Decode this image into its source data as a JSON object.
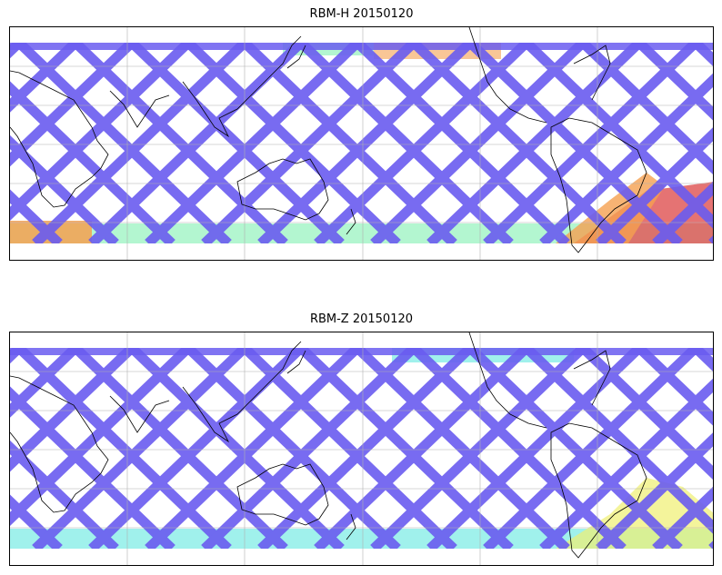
{
  "figure": {
    "panels": [
      {
        "title": "RBM-H 20150120",
        "track_color": "#6a5cf0",
        "hot_colors": [
          "#e05a5a",
          "#f5a050",
          "#f0f070",
          "#80f0b0",
          "#50d8f0"
        ]
      },
      {
        "title": "RBM-Z 20150120",
        "track_color": "#6a5cf0",
        "hot_colors": [
          "#f0f070",
          "#a0f0a0",
          "#60e8e0",
          "#58b8f0"
        ]
      }
    ],
    "gridline_color": "#b0b0b0",
    "coastline_color": "#000000"
  }
}
